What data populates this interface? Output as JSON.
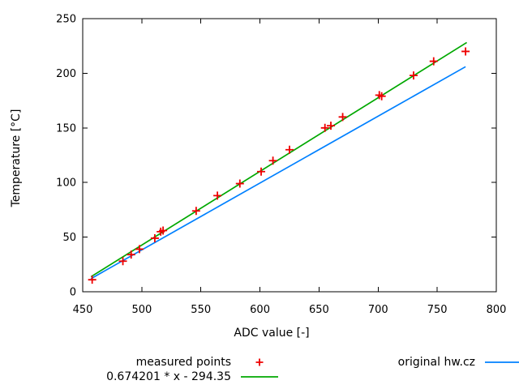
{
  "chart_data": {
    "type": "scatter",
    "title": "",
    "xlabel": "ADC value [-]",
    "ylabel": "Temperature [°C]",
    "xlim": [
      450,
      800
    ],
    "ylim": [
      0,
      250
    ],
    "xticks": [
      450,
      500,
      550,
      600,
      650,
      700,
      750,
      800
    ],
    "yticks": [
      0,
      50,
      100,
      150,
      200,
      250
    ],
    "grid": false,
    "legend_position": "below-plot-outside",
    "series": [
      {
        "name": "measured points",
        "kind": "points",
        "marker": "plus",
        "color": "#ee0000",
        "points": [
          [
            458,
            11
          ],
          [
            484,
            28
          ],
          [
            491,
            34
          ],
          [
            498,
            39
          ],
          [
            511,
            49
          ],
          [
            516,
            55
          ],
          [
            518,
            56
          ],
          [
            546,
            74
          ],
          [
            564,
            88
          ],
          [
            583,
            99
          ],
          [
            601,
            110
          ],
          [
            611,
            120
          ],
          [
            625,
            130
          ],
          [
            655,
            150
          ],
          [
            660,
            152
          ],
          [
            670,
            160
          ],
          [
            701,
            180
          ],
          [
            703,
            179
          ],
          [
            730,
            198
          ],
          [
            747,
            211
          ],
          [
            774,
            220
          ]
        ]
      },
      {
        "name": "0.674201 * x - 294.35",
        "kind": "line",
        "color": "#00a800",
        "slope": 0.674201,
        "intercept": -294.35,
        "xrange": [
          457,
          775
        ]
      },
      {
        "name": "original hw.cz",
        "kind": "line",
        "color": "#0080ff",
        "endpoints": [
          [
            457,
            12
          ],
          [
            774,
            206
          ]
        ]
      }
    ],
    "frame_color": "#000000",
    "background": "#ffffff"
  }
}
